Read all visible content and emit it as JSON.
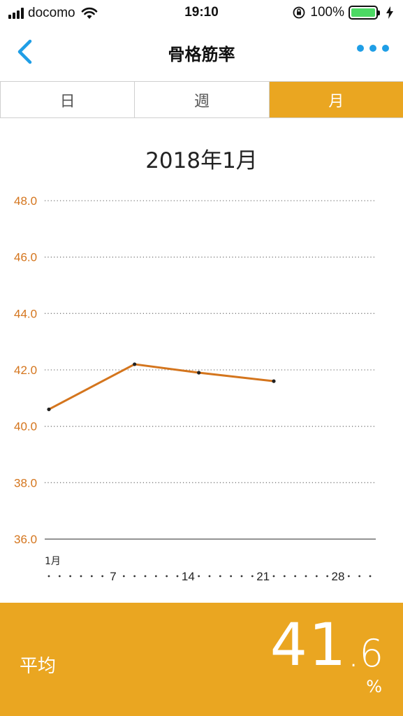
{
  "status_bar": {
    "carrier": "docomo",
    "time": "19:10",
    "battery_percent": "100%",
    "battery_level": 1.0
  },
  "nav": {
    "title": "骨格筋率",
    "back_icon": "chevron-left-icon",
    "more_icon": "more-dots-icon"
  },
  "tabs": [
    {
      "label": "日",
      "active": false
    },
    {
      "label": "週",
      "active": false
    },
    {
      "label": "月",
      "active": true
    }
  ],
  "colors": {
    "accent": "#eaa621",
    "line": "#d4751d",
    "axis_label": "#d4751d",
    "link": "#1f9ee6"
  },
  "chart_data": {
    "type": "line",
    "title": "2018年1月",
    "x_month_label": "1月",
    "x_range": [
      1,
      31
    ],
    "x_ticks": [
      7,
      14,
      21,
      28
    ],
    "ylim": [
      36.0,
      48.0
    ],
    "y_ticks": [
      "48.0",
      "46.0",
      "44.0",
      "42.0",
      "40.0",
      "38.0",
      "36.0"
    ],
    "grid": true,
    "series": [
      {
        "x": [
          1,
          9,
          15,
          22
        ],
        "values": [
          40.6,
          42.2,
          41.9,
          41.6
        ]
      }
    ]
  },
  "summary": {
    "label": "平均",
    "value_int": "41",
    "value_dec": ".6",
    "unit": "%"
  }
}
